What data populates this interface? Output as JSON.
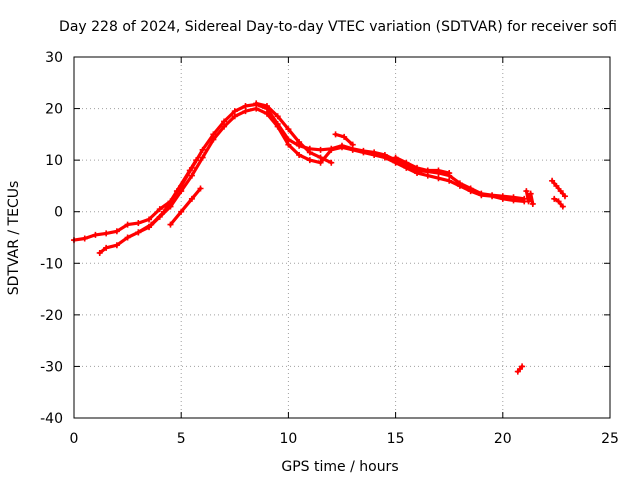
{
  "chart_data": {
    "type": "scatter",
    "title": "Day 228 of 2024, Sidereal Day-to-day VTEC variation (SDTVAR) for receiver sofi",
    "xlabel": "GPS time / hours",
    "ylabel": "SDTVAR / TECUs",
    "xlim": [
      0,
      25
    ],
    "ylim": [
      -40,
      30
    ],
    "xticks": [
      "0",
      "5",
      "10",
      "15",
      "20",
      "25"
    ],
    "yticks": [
      "30",
      "20",
      "10",
      "0",
      "-10",
      "-20",
      "-30",
      "-40"
    ],
    "grid": true,
    "legend": "none",
    "color": "#ff0000",
    "marker": "plus",
    "series": [
      {
        "name": "main-track-a",
        "x": [
          0,
          0.5,
          1,
          1.5,
          2,
          2.5,
          3,
          3.5,
          4,
          4.5,
          5,
          5.5,
          6,
          6.5,
          7,
          7.5,
          8,
          8.5,
          9,
          9.5,
          10,
          10.5,
          11,
          11.5,
          12,
          12.5,
          13,
          13.5,
          14,
          14.5,
          15,
          15.5,
          16,
          16.5,
          17,
          17.5,
          18,
          18.5,
          19,
          19.5,
          20,
          20.5,
          21
        ],
        "y": [
          -5.5,
          -5.2,
          -4.5,
          -4.2,
          -3.8,
          -2.5,
          -2.2,
          -1.5,
          0.5,
          2,
          5,
          8.5,
          12,
          15,
          17.5,
          19.5,
          20.5,
          20.8,
          20,
          17,
          14,
          12.8,
          12.2,
          12,
          12.2,
          12.8,
          12.2,
          11.8,
          11.5,
          11,
          10,
          9,
          8,
          7.8,
          7.5,
          7,
          5.5,
          4.5,
          3.5,
          3.2,
          3,
          2.8,
          2.5
        ]
      },
      {
        "name": "main-track-b",
        "x": [
          1.2,
          1.5,
          2,
          2.5,
          3,
          3.5,
          4,
          4.5,
          5,
          5.5,
          6,
          6.5,
          7,
          7.5,
          8,
          8.5,
          9,
          9.5,
          10,
          10.5,
          11,
          11.5,
          12,
          12.5,
          13,
          13.5,
          14,
          14.5,
          15,
          15.5,
          16,
          16.5,
          17,
          17.5,
          18,
          18.5,
          19,
          19.5,
          20,
          20.5,
          21
        ],
        "y": [
          -8,
          -7,
          -6.5,
          -5,
          -4,
          -3,
          -1,
          1,
          4,
          7,
          10.5,
          14,
          16.5,
          18.5,
          19.5,
          20,
          19,
          16.5,
          13,
          11,
          10,
          9.5,
          12,
          12.5,
          12,
          11.5,
          11,
          10.5,
          9.5,
          8.5,
          7.5,
          7,
          6.5,
          6,
          5,
          4,
          3.2,
          3,
          2.5,
          2.2,
          2
        ]
      },
      {
        "name": "branch-1",
        "x": [
          3,
          3.6,
          4.2,
          4.8,
          5.4,
          5.7
        ],
        "y": [
          -4,
          -2.5,
          0,
          4,
          8,
          10
        ]
      },
      {
        "name": "branch-2",
        "x": [
          4.5,
          5,
          5.5,
          5.9
        ],
        "y": [
          -2.5,
          0,
          2.5,
          4.5
        ]
      },
      {
        "name": "branch-3",
        "x": [
          8.5,
          9,
          9.5,
          10,
          10.5,
          11,
          11.5,
          12
        ],
        "y": [
          21,
          20.5,
          18.5,
          16,
          13.5,
          11.5,
          10.5,
          9.5
        ]
      },
      {
        "name": "branch-4",
        "x": [
          12.2,
          12.6,
          13
        ],
        "y": [
          15,
          14.5,
          13
        ]
      },
      {
        "name": "branch-5",
        "x": [
          15,
          15.5,
          16,
          16.5,
          17,
          17.5
        ],
        "y": [
          10.5,
          9.5,
          8.5,
          8,
          8,
          7.5
        ]
      },
      {
        "name": "cluster-21",
        "x": [
          21.1,
          21.2,
          21.3,
          21.4
        ],
        "y": [
          4,
          2,
          3.5,
          1.5
        ]
      },
      {
        "name": "late-track",
        "x": [
          22.3,
          22.5,
          22.7,
          22.9
        ],
        "y": [
          6,
          5,
          4,
          3
        ]
      },
      {
        "name": "late-track-2",
        "x": [
          22.4,
          22.6,
          22.8
        ],
        "y": [
          2.5,
          2,
          1
        ]
      },
      {
        "name": "outlier",
        "x": [
          20.7,
          20.8,
          20.9
        ],
        "y": [
          -31,
          -30.5,
          -30
        ]
      }
    ]
  }
}
